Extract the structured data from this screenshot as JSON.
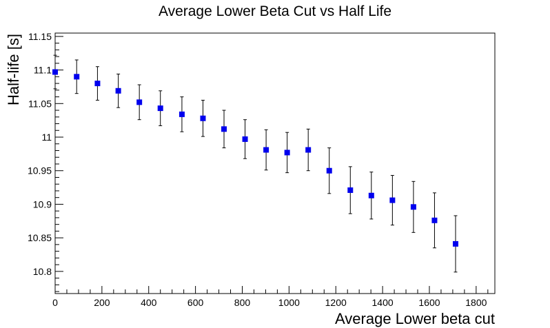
{
  "chart_data": {
    "type": "scatter",
    "title": "Average Lower Beta Cut vs Half Life",
    "xlabel": "Average Lower beta cut",
    "ylabel": "Half-life [s]",
    "xlim": [
      0,
      1880
    ],
    "ylim": [
      10.767,
      11.155
    ],
    "xticks": [
      0,
      200,
      400,
      600,
      800,
      1000,
      1200,
      1400,
      1600,
      1800
    ],
    "xtick_labels": [
      "0",
      "200",
      "400",
      "600",
      "800",
      "1000",
      "1200",
      "1400",
      "1600",
      "1800"
    ],
    "yticks": [
      10.8,
      10.85,
      10.9,
      10.95,
      11,
      11.05,
      11.1,
      11.15
    ],
    "ytick_labels": [
      "10.8",
      "10.85",
      "10.9",
      "10.95",
      "11",
      "11.05",
      "11.1",
      "11.15"
    ],
    "grid": false,
    "marker_color": "#0000ee",
    "series": [
      {
        "x": [
          0,
          92,
          181,
          270,
          360,
          450,
          542,
          632,
          722,
          812,
          902,
          992,
          1082,
          1172,
          1262,
          1352,
          1442,
          1532,
          1622,
          1712
        ],
        "y": [
          11.097,
          11.09,
          11.08,
          11.069,
          11.052,
          11.043,
          11.034,
          11.028,
          11.012,
          10.997,
          10.981,
          10.977,
          10.981,
          10.95,
          10.921,
          10.913,
          10.906,
          10.896,
          10.876,
          10.841
        ],
        "yerr": [
          0.025,
          0.025,
          0.025,
          0.025,
          0.026,
          0.026,
          0.026,
          0.027,
          0.028,
          0.029,
          0.03,
          0.03,
          0.031,
          0.034,
          0.035,
          0.035,
          0.037,
          0.038,
          0.041,
          0.042
        ]
      }
    ]
  }
}
